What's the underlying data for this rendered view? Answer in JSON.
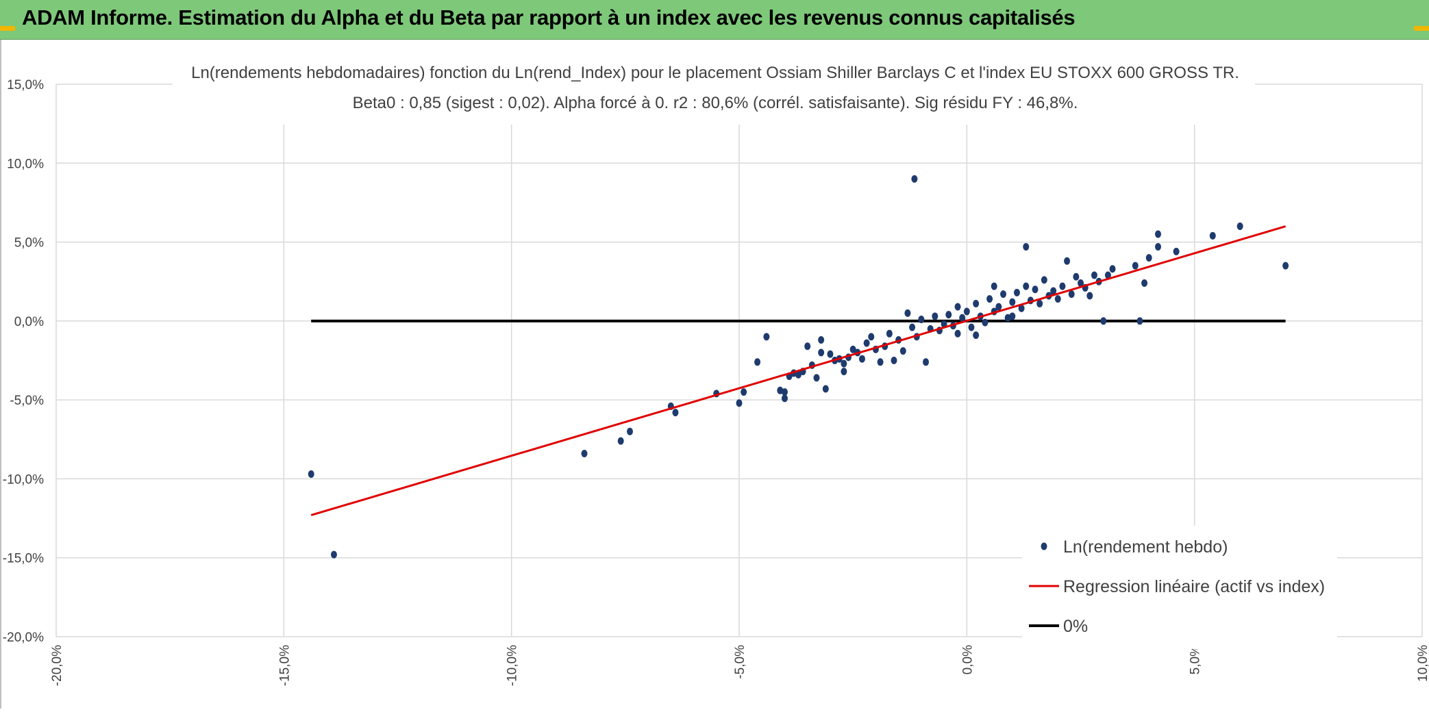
{
  "header": {
    "title": "ADAM Informe. Estimation du Alpha et du Beta par rapport à un index avec les revenus connus capitalisés"
  },
  "colors": {
    "header_bg": "#7ec87a",
    "points": "#1f3b6e",
    "regression": "#e00000",
    "zero_line": "#000000",
    "grid": "#d9d9d9"
  },
  "chart_data": {
    "type": "scatter",
    "title": "Ln(rendements hebdomadaires) fonction du Ln(rend_Index) pour le placement Ossiam Shiller Barclays C et l'index EU STOXX 600 GROSS TR.",
    "subtitle": "Beta0 : 0,85 (sigest : 0,02). Alpha forcé à 0. r2 : 80,6% (corrél. satisfaisante). Sig résidu FY : 46,8%.",
    "xlim": [
      -20,
      10
    ],
    "ylim": [
      -20,
      15
    ],
    "x_ticks": [
      -20,
      -15,
      -10,
      -5,
      0,
      5,
      10
    ],
    "y_ticks": [
      -20,
      -15,
      -10,
      -5,
      0,
      5,
      10,
      15
    ],
    "x_tick_labels": [
      "-20,0%",
      "-15,0%",
      "-10,0%",
      "-5,0%",
      "0,0%",
      "5,0%",
      "10,0%"
    ],
    "y_tick_labels": [
      "-20,0%",
      "-15,0%",
      "-10,0%",
      "-5,0%",
      "0,0%",
      "5,0%",
      "10,0%",
      "15,0%"
    ],
    "legend_position": "bottom-right",
    "series": [
      {
        "name": "Ln(rendement hebdo)",
        "kind": "points",
        "points": [
          [
            -14.4,
            -9.7
          ],
          [
            -13.9,
            -14.8
          ],
          [
            -8.4,
            -8.4
          ],
          [
            -7.6,
            -7.6
          ],
          [
            -7.4,
            -7.0
          ],
          [
            -6.5,
            -5.4
          ],
          [
            -6.4,
            -5.8
          ],
          [
            -5.5,
            -4.6
          ],
          [
            -5.0,
            -5.2
          ],
          [
            -4.9,
            -4.5
          ],
          [
            -4.6,
            -2.6
          ],
          [
            -4.4,
            -1.0
          ],
          [
            -4.1,
            -4.4
          ],
          [
            -4.0,
            -4.5
          ],
          [
            -4.0,
            -4.9
          ],
          [
            -3.9,
            -3.5
          ],
          [
            -3.8,
            -3.3
          ],
          [
            -3.7,
            -3.4
          ],
          [
            -3.6,
            -3.2
          ],
          [
            -3.5,
            -1.6
          ],
          [
            -3.4,
            -2.8
          ],
          [
            -3.3,
            -3.6
          ],
          [
            -3.2,
            -2.0
          ],
          [
            -3.2,
            -1.2
          ],
          [
            -3.1,
            -4.3
          ],
          [
            -3.0,
            -2.1
          ],
          [
            -2.9,
            -2.5
          ],
          [
            -2.8,
            -2.4
          ],
          [
            -2.7,
            -3.2
          ],
          [
            -2.7,
            -2.7
          ],
          [
            -2.6,
            -2.3
          ],
          [
            -2.5,
            -1.8
          ],
          [
            -2.4,
            -2.0
          ],
          [
            -2.3,
            -2.4
          ],
          [
            -2.2,
            -1.4
          ],
          [
            -2.1,
            -1.0
          ],
          [
            -2.0,
            -1.8
          ],
          [
            -1.9,
            -2.6
          ],
          [
            -1.8,
            -1.6
          ],
          [
            -1.7,
            -0.8
          ],
          [
            -1.6,
            -2.5
          ],
          [
            -1.5,
            -1.2
          ],
          [
            -1.4,
            -1.9
          ],
          [
            -1.3,
            0.5
          ],
          [
            -1.2,
            -0.4
          ],
          [
            -1.1,
            -1.0
          ],
          [
            -1.0,
            0.1
          ],
          [
            -0.9,
            -2.6
          ],
          [
            -1.15,
            9.0
          ],
          [
            3.0,
            0.0
          ],
          [
            3.8,
            0.0
          ],
          [
            7.0,
            3.5
          ],
          [
            6.0,
            6.0
          ],
          [
            5.4,
            5.4
          ],
          [
            4.6,
            4.4
          ],
          [
            4.2,
            5.5
          ],
          [
            4.2,
            4.7
          ],
          [
            3.9,
            2.4
          ],
          [
            3.7,
            3.5
          ],
          [
            4.0,
            4.0
          ],
          [
            3.2,
            3.3
          ],
          [
            2.8,
            2.9
          ],
          [
            2.5,
            2.4
          ],
          [
            2.2,
            3.8
          ],
          [
            1.3,
            4.7
          ],
          [
            -0.8,
            -0.5
          ],
          [
            -0.7,
            0.3
          ],
          [
            -0.6,
            -0.6
          ],
          [
            -0.5,
            -0.2
          ],
          [
            -0.4,
            0.4
          ],
          [
            -0.3,
            -0.3
          ],
          [
            -0.2,
            -0.8
          ],
          [
            -0.1,
            0.2
          ],
          [
            0.0,
            0.6
          ],
          [
            0.1,
            -0.4
          ],
          [
            0.2,
            1.1
          ],
          [
            0.3,
            0.3
          ],
          [
            0.4,
            -0.1
          ],
          [
            0.5,
            1.4
          ],
          [
            0.6,
            0.6
          ],
          [
            0.7,
            0.9
          ],
          [
            0.8,
            1.7
          ],
          [
            0.9,
            0.2
          ],
          [
            1.0,
            1.2
          ],
          [
            1.1,
            1.8
          ],
          [
            1.2,
            0.8
          ],
          [
            1.3,
            2.2
          ],
          [
            1.4,
            1.3
          ],
          [
            1.5,
            2.0
          ],
          [
            1.6,
            1.1
          ],
          [
            1.7,
            2.6
          ],
          [
            1.8,
            1.6
          ],
          [
            1.9,
            1.9
          ],
          [
            2.0,
            1.4
          ],
          [
            2.1,
            2.2
          ],
          [
            2.3,
            1.7
          ],
          [
            2.4,
            2.8
          ],
          [
            2.6,
            2.1
          ],
          [
            2.7,
            1.6
          ],
          [
            2.9,
            2.5
          ],
          [
            3.1,
            2.9
          ],
          [
            0.2,
            -0.9
          ],
          [
            -0.2,
            0.9
          ],
          [
            0.6,
            2.2
          ],
          [
            1.0,
            0.3
          ]
        ]
      },
      {
        "name": "Regression linéaire (actif vs index)",
        "kind": "line",
        "points": [
          [
            -14.4,
            -12.3
          ],
          [
            7.0,
            6.0
          ]
        ]
      },
      {
        "name": "0%",
        "kind": "line",
        "points": [
          [
            -14.4,
            0.0
          ],
          [
            7.0,
            0.0
          ]
        ]
      }
    ]
  }
}
